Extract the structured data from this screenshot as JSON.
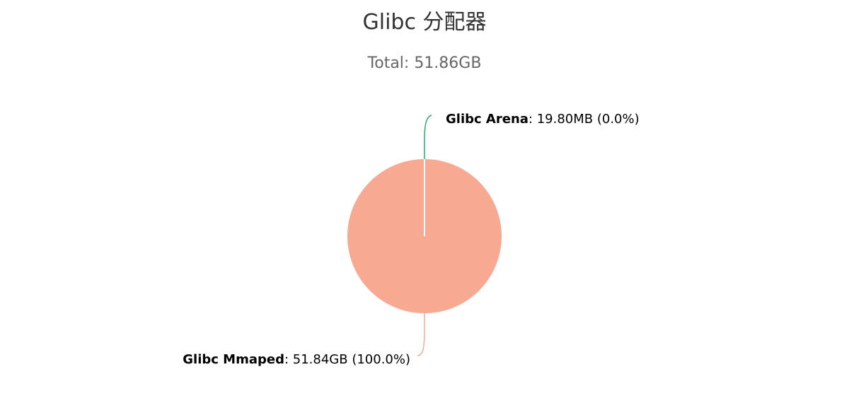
{
  "chart_data": {
    "type": "pie",
    "title": "Glibc 分配器",
    "subtitle": "Total: 51.86GB",
    "slices": [
      {
        "name": "Glibc Mmaped",
        "value": 51.84,
        "unit": "GB",
        "value_label": "51.84GB",
        "percent_label": "100.0%",
        "color": "#f7a991"
      },
      {
        "name": "Glibc Arena",
        "value": 0.0198,
        "unit": "GB",
        "value_label": "19.80MB",
        "percent_label": "0.0%",
        "color": "#2ba772"
      }
    ],
    "legend": "none",
    "slice_border_color": "#ffffff"
  }
}
